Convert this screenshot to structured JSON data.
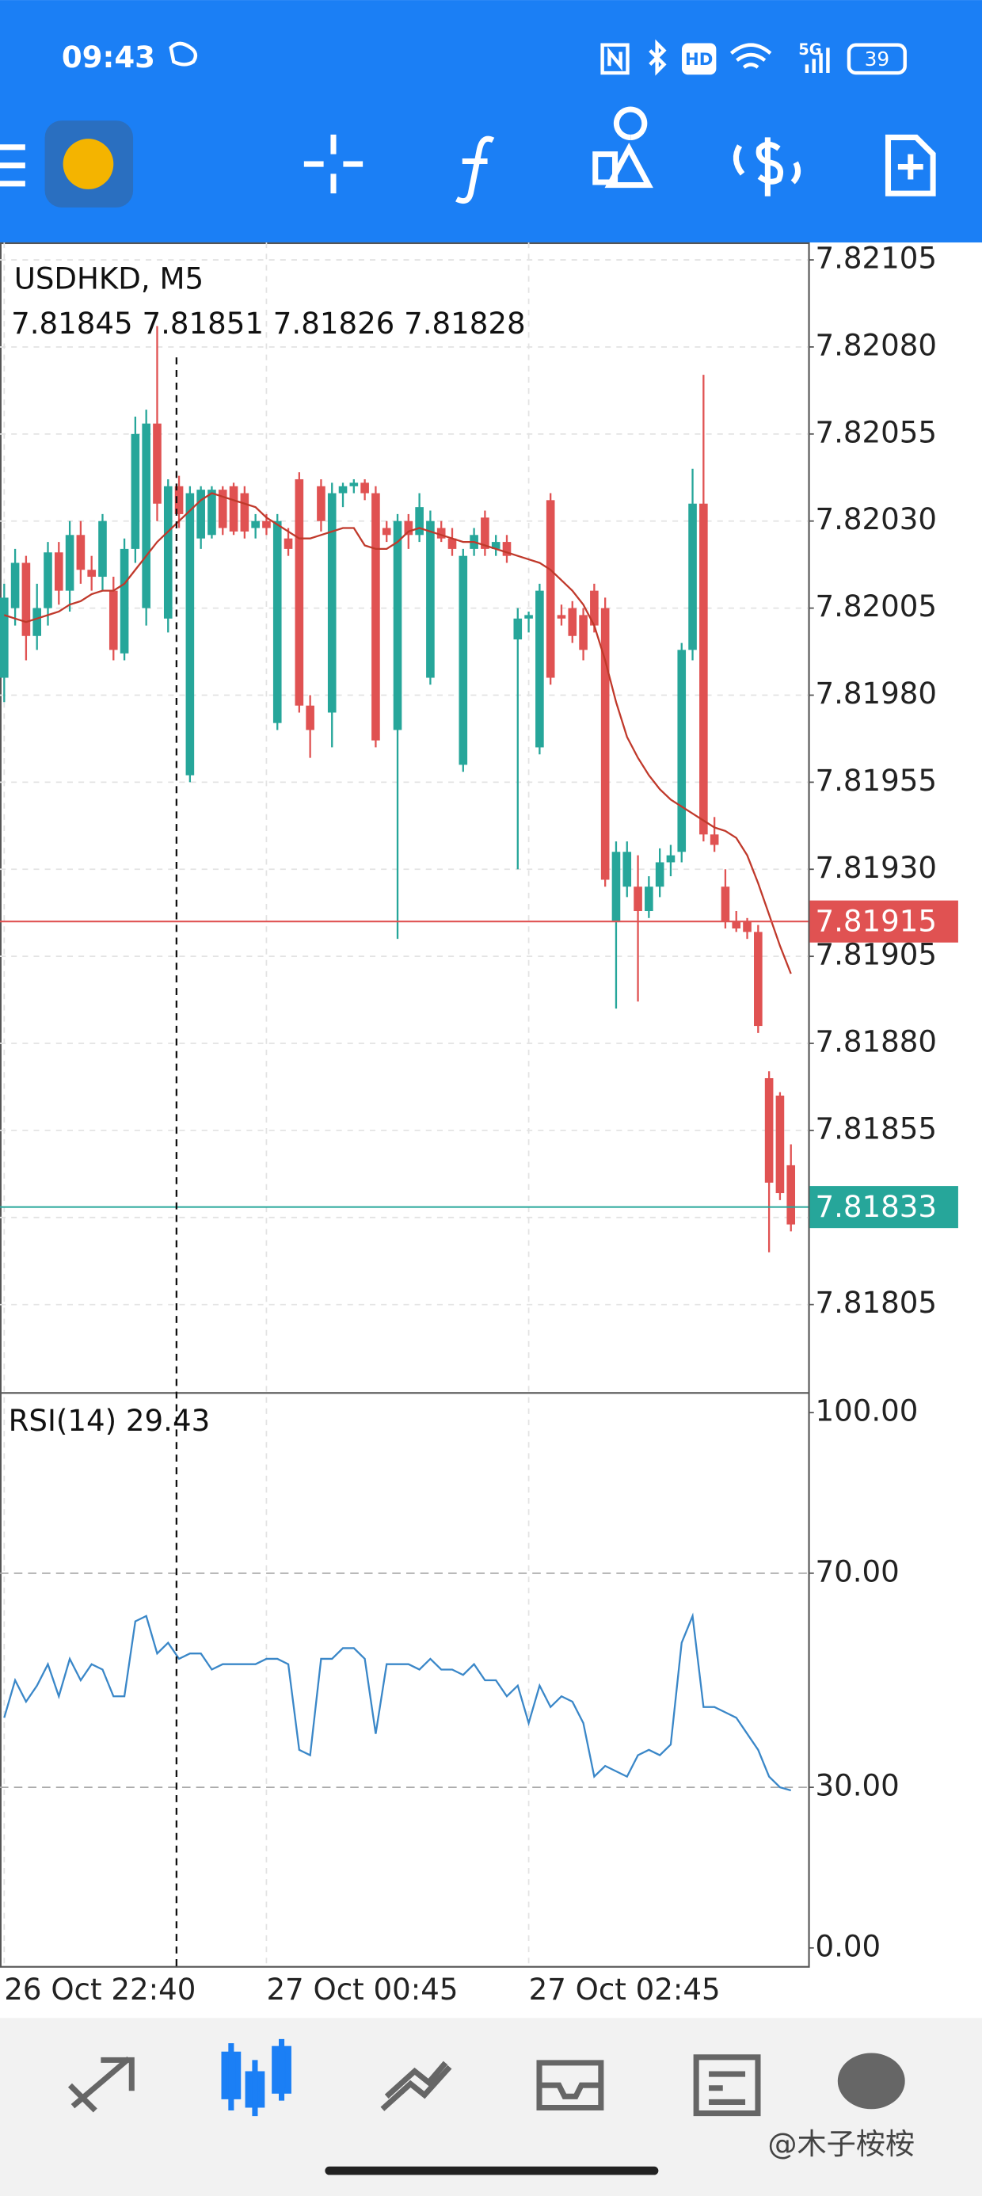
{
  "status_bar": {
    "time": "09:43",
    "hd": "HD",
    "network": "5G",
    "battery": "39"
  },
  "watermark": "@木子桉桉",
  "chart_data": [
    {
      "type": "candlestick",
      "title": "USDHKD, M5",
      "subtitle": "7.81845 7.81851 7.81826 7.81828",
      "categories": [
        "26 Oct 22:40",
        null,
        null,
        null,
        null,
        null,
        null,
        null,
        null,
        null,
        null,
        null,
        null,
        null,
        null,
        null,
        null,
        null,
        null,
        null,
        null,
        null,
        null,
        null,
        "27 Oct 00:45",
        null,
        null,
        null,
        null,
        null,
        null,
        null,
        null,
        null,
        null,
        null,
        null,
        null,
        null,
        null,
        null,
        null,
        null,
        null,
        null,
        null,
        null,
        null,
        "27 Oct 02:45",
        null,
        null,
        null,
        null,
        null,
        null,
        null,
        null,
        null,
        null,
        null,
        null,
        null,
        null,
        null,
        null,
        null,
        null,
        null,
        null,
        null,
        null,
        null,
        null
      ],
      "open": [
        7.81985,
        7.82005,
        7.82018,
        7.81997,
        7.82005,
        7.82021,
        7.8201,
        7.82026,
        7.82016,
        7.82014,
        7.8201,
        7.81992,
        7.82022,
        7.82005,
        7.82058,
        7.82002,
        7.8204,
        7.81957,
        7.82025,
        7.82026,
        7.82039,
        7.8204,
        7.82038,
        7.82028,
        7.8203,
        7.81972,
        7.82025,
        7.82042,
        7.81977,
        7.8204,
        7.81975,
        7.82038,
        7.8204,
        7.82041,
        7.82038,
        7.82028,
        7.8197,
        7.8203,
        7.82026,
        7.81985,
        7.82028,
        7.82025,
        7.8196,
        7.82022,
        7.82031,
        7.82022,
        7.82024,
        7.81996,
        7.82002,
        7.81965,
        7.82036,
        7.82003,
        7.82005,
        7.82003,
        7.8201,
        7.82005,
        7.81915,
        7.81925,
        7.81925,
        7.81918,
        7.81925,
        7.81932,
        7.81935,
        7.81993,
        7.82035,
        7.8194,
        7.81925,
        7.81915,
        7.81915,
        7.81912,
        7.8187,
        7.81865,
        7.81845
      ],
      "high": [
        7.82012,
        7.82022,
        7.8202,
        7.82012,
        7.82024,
        7.82024,
        7.8203,
        7.8203,
        7.8202,
        7.82032,
        7.82014,
        7.82025,
        7.8206,
        7.82062,
        7.82086,
        7.82042,
        7.82043,
        7.8204,
        7.8204,
        7.8204,
        7.8204,
        7.82041,
        7.8204,
        7.82032,
        7.82032,
        7.82032,
        7.82028,
        7.82044,
        7.8198,
        7.82042,
        7.82041,
        7.82041,
        7.82042,
        7.82042,
        7.8204,
        7.8203,
        7.82032,
        7.82032,
        7.82038,
        7.82033,
        7.8203,
        7.82028,
        7.82022,
        7.82028,
        7.82033,
        7.82026,
        7.82026,
        7.82005,
        7.82004,
        7.82012,
        7.82038,
        7.82006,
        7.82007,
        7.82005,
        7.82012,
        7.82008,
        7.81938,
        7.81938,
        7.81934,
        7.81928,
        7.81936,
        7.81937,
        7.81995,
        7.82045,
        7.82072,
        7.81945,
        7.8193,
        7.81918,
        7.81916,
        7.81914,
        7.81872,
        7.81866,
        7.81851
      ],
      "low": [
        7.81978,
        7.82,
        7.8199,
        7.81993,
        7.82,
        7.82006,
        7.82004,
        7.82012,
        7.8201,
        7.8201,
        7.8199,
        7.8199,
        7.82018,
        7.82,
        7.8203,
        7.81998,
        7.82028,
        7.81955,
        7.82022,
        7.82025,
        7.82026,
        7.82026,
        7.82025,
        7.82025,
        7.82026,
        7.8197,
        7.8202,
        7.81975,
        7.81962,
        7.82027,
        7.81965,
        7.82034,
        7.82038,
        7.82036,
        7.81965,
        7.82024,
        7.8191,
        7.82022,
        7.82024,
        7.81983,
        7.82024,
        7.8202,
        7.81958,
        7.8202,
        7.8202,
        7.8202,
        7.82018,
        7.8193,
        7.81998,
        7.81963,
        7.81983,
        7.82,
        7.81995,
        7.8199,
        7.81998,
        7.81925,
        7.8189,
        7.81922,
        7.81892,
        7.81916,
        7.81922,
        7.81928,
        7.81932,
        7.8199,
        7.81938,
        7.81935,
        7.81913,
        7.81912,
        7.8191,
        7.81883,
        7.8182,
        7.81835,
        7.81826
      ],
      "close": [
        7.82008,
        7.82018,
        7.81997,
        7.82005,
        7.82021,
        7.8201,
        7.82026,
        7.82016,
        7.82014,
        7.8203,
        7.81993,
        7.82022,
        7.82055,
        7.82058,
        7.82035,
        7.8204,
        7.82032,
        7.82038,
        7.82039,
        7.82039,
        7.82028,
        7.82027,
        7.82027,
        7.8203,
        7.82028,
        7.8203,
        7.82022,
        7.81977,
        7.8197,
        7.8203,
        7.82038,
        7.8204,
        7.82041,
        7.82038,
        7.81967,
        7.82026,
        7.8203,
        7.82026,
        7.82034,
        7.8203,
        7.82025,
        7.82022,
        7.8202,
        7.82026,
        7.82022,
        7.82024,
        7.8202,
        7.82002,
        7.82003,
        7.8201,
        7.81985,
        7.82002,
        7.81997,
        7.81993,
        7.82,
        7.81927,
        7.81935,
        7.81935,
        7.81918,
        7.81925,
        7.81932,
        7.81934,
        7.81993,
        7.82035,
        7.8194,
        7.81937,
        7.81915,
        7.81913,
        7.81912,
        7.81885,
        7.8184,
        7.81837,
        7.81828
      ],
      "up_color": "#26a69a",
      "down_color": "#e05252",
      "moving_average_color": "#c0392b",
      "moving_average_values": [
        7.82003,
        7.82002,
        7.82001,
        7.82002,
        7.82003,
        7.82004,
        7.82006,
        7.82007,
        7.82009,
        7.8201,
        7.8201,
        7.82012,
        7.82016,
        7.8202,
        7.82024,
        7.82027,
        7.8203,
        7.82033,
        7.82036,
        7.82038,
        7.82037,
        7.82036,
        7.82035,
        7.82034,
        7.82031,
        7.82029,
        7.82027,
        7.82025,
        7.82025,
        7.82026,
        7.82027,
        7.82028,
        7.82028,
        7.82023,
        7.82022,
        7.82022,
        7.82024,
        7.82027,
        7.82028,
        7.82027,
        7.82026,
        7.82025,
        7.82024,
        7.82024,
        7.82023,
        7.82022,
        7.82021,
        7.8202,
        7.82019,
        7.82018,
        7.82016,
        7.82013,
        7.8201,
        7.82006,
        7.82,
        7.8199,
        7.81978,
        7.81968,
        7.81962,
        7.81957,
        7.81953,
        7.8195,
        7.81948,
        7.81946,
        7.81944,
        7.81942,
        7.81941,
        7.81939,
        7.81934,
        7.81926,
        7.81917,
        7.81908,
        7.819
      ],
      "price_lines": [
        {
          "value": 7.81915,
          "color": "#e05252"
        },
        {
          "value": 7.81833,
          "color": "#26a69a"
        }
      ],
      "ylim": [
        7.8178,
        7.8211
      ],
      "yticks": [
        7.82105,
        {
          "value": 7.8208,
          "label": "7.82080"
        },
        7.82055,
        {
          "value": 7.8203,
          "label": "7.82030"
        },
        7.82005,
        {
          "value": 7.8198,
          "label": "7.81980"
        },
        7.81955,
        {
          "value": 7.8193,
          "label": "7.81930"
        },
        7.81905,
        {
          "value": 7.8188,
          "label": "7.81880"
        },
        7.81855,
        {
          "value": 7.8183,
          "label": "7.81830"
        },
        7.81805
      ],
      "grid": true
    },
    {
      "type": "line",
      "title": "RSI(14) 29.43",
      "color": "#3a87c8",
      "values": [
        43,
        50,
        46,
        49,
        53,
        47,
        54,
        50,
        53,
        52,
        47,
        47,
        61,
        62,
        55,
        57,
        54,
        55,
        55,
        52,
        53,
        53,
        53,
        53,
        54,
        54,
        53,
        37,
        36,
        54,
        54,
        56,
        56,
        54,
        40,
        53,
        53,
        53,
        52,
        54,
        52,
        52,
        51,
        53,
        50,
        50,
        47,
        49,
        42,
        49,
        45,
        47,
        46,
        42,
        32,
        34,
        33,
        32,
        36,
        37,
        36,
        38,
        57,
        62,
        45,
        45,
        44,
        43,
        40,
        37,
        32,
        30,
        29.43
      ],
      "ylim": [
        -3.4,
        103.4
      ],
      "yticks": [
        {
          "value": 100,
          "label": "100.00"
        },
        {
          "value": 70,
          "label": "70.00"
        },
        {
          "value": 30,
          "label": "30.00"
        },
        {
          "value": 0,
          "label": "0.00"
        }
      ],
      "levels": [
        70,
        30
      ]
    }
  ]
}
